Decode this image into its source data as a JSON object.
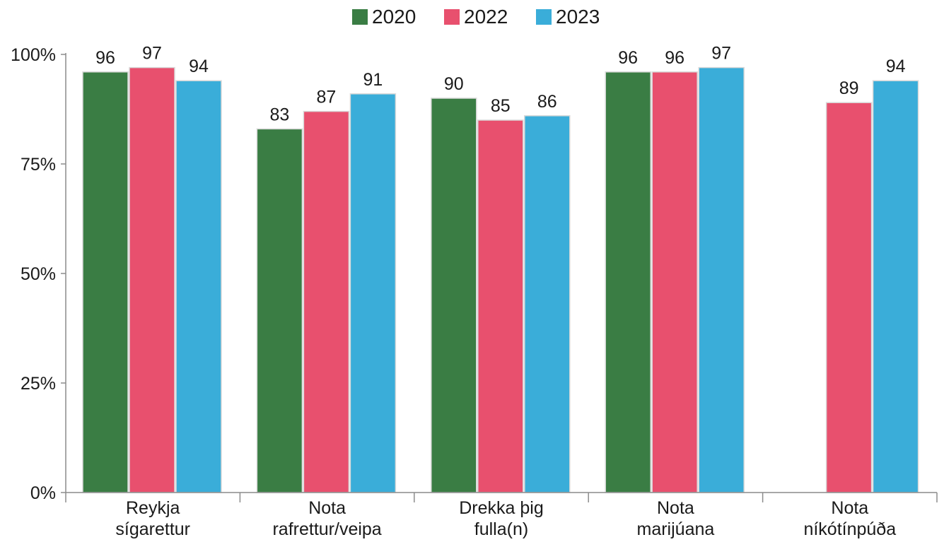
{
  "chart_data": {
    "type": "bar",
    "categories": [
      [
        "Reykja",
        "sígarettur"
      ],
      [
        "Nota",
        "rafrettur/veipa"
      ],
      [
        "Drekka þig",
        "fulla(n)"
      ],
      [
        "Nota",
        "marijúana"
      ],
      [
        "Nota",
        "níkótínpúða"
      ]
    ],
    "series": [
      {
        "name": "2020",
        "color": "#3a7d44",
        "values": [
          96,
          83,
          90,
          96,
          null
        ]
      },
      {
        "name": "2022",
        "color": "#e8506e",
        "values": [
          97,
          87,
          85,
          96,
          89
        ]
      },
      {
        "name": "2023",
        "color": "#3aadd9",
        "values": [
          94,
          91,
          86,
          97,
          94
        ]
      }
    ],
    "y_ticks": [
      "0%",
      "25%",
      "50%",
      "75%",
      "100%"
    ],
    "y_tick_values": [
      0,
      25,
      50,
      75,
      100
    ],
    "ylim": [
      0,
      100
    ],
    "legend_position": "top-center",
    "grid": false,
    "data_labels": true
  }
}
